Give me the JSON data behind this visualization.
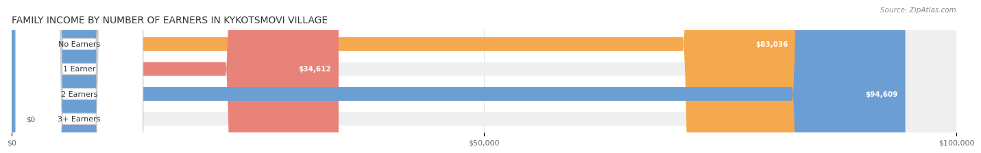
{
  "title": "FAMILY INCOME BY NUMBER OF EARNERS IN KYKOTSMOVI VILLAGE",
  "source": "Source: ZipAtlas.com",
  "categories": [
    "No Earners",
    "1 Earner",
    "2 Earners",
    "3+ Earners"
  ],
  "values": [
    83036,
    34612,
    94609,
    0
  ],
  "bar_colors": [
    "#F5A94E",
    "#E8837A",
    "#6B9FD4",
    "#C9A8D4"
  ],
  "track_color": "#EFEFEF",
  "value_labels": [
    "$83,036",
    "$34,612",
    "$94,609",
    "$0"
  ],
  "xlim": [
    0,
    100000
  ],
  "xticks": [
    0,
    50000,
    100000
  ],
  "xtick_labels": [
    "$0",
    "$50,000",
    "$100,000"
  ],
  "background_color": "#FFFFFF",
  "title_fontsize": 10,
  "bar_height": 0.55,
  "figsize": [
    14.06,
    2.33
  ]
}
